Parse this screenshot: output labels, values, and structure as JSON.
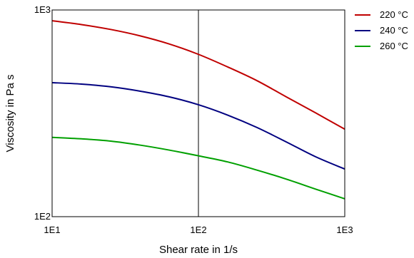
{
  "chart_data": {
    "type": "line",
    "xlabel": "Shear rate in 1/s",
    "ylabel": "Viscosity in Pa s",
    "xscale": "log",
    "yscale": "log",
    "xlim": [
      10,
      1000
    ],
    "ylim": [
      100,
      1000
    ],
    "x_ticks": [
      "1E1",
      "1E2",
      "1E3"
    ],
    "y_ticks": [
      "1E2",
      "1E3"
    ],
    "grid": "vertical line at x = 1E2",
    "legend_position": "top-right, outside plot",
    "x": [
      10,
      15.85,
      25.12,
      39.81,
      63.1,
      100,
      158.5,
      251.2,
      398.1,
      631,
      1000
    ],
    "series": [
      {
        "name": "220 °C",
        "color": "#c00000",
        "values": [
          887,
          850,
          805,
          750,
          685,
          610,
          530,
          455,
          380,
          318,
          265
        ]
      },
      {
        "name": "240 °C",
        "color": "#000080",
        "values": [
          445,
          438,
          425,
          405,
          380,
          348,
          310,
          270,
          230,
          195,
          170
        ]
      },
      {
        "name": "260 °C",
        "color": "#00a000",
        "values": [
          242,
          238,
          232,
          222,
          210,
          197,
          184,
          168,
          152,
          136,
          122
        ]
      }
    ]
  }
}
